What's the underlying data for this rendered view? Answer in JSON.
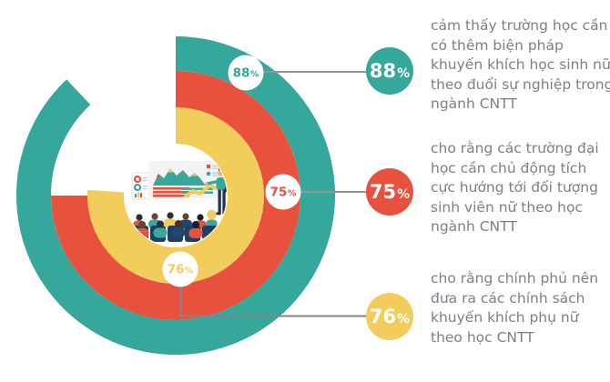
{
  "chart_data": {
    "type": "pie",
    "variant": "concentric_donut_gauge",
    "direction": "clockwise",
    "start_position": "12-oclock",
    "percent_sign": "%",
    "center_illustration": "presentation-scene",
    "rings": [
      {
        "value": 88,
        "value_label": "88%",
        "color": "#35A79B",
        "description": "cảm thấy trường học cần có thêm biện pháp khuyến khích học sinh nữ theo đuổi sự nghiệp trong ngành CNTT"
      },
      {
        "value": 75,
        "value_label": "75%",
        "color": "#E8513D",
        "description": "cho rằng các trường đại học cần chủ động tích cực hướng tới đối tượng sinh viên nữ theo học ngành CNTT"
      },
      {
        "value": 76,
        "value_label": "76%",
        "color": "#F3CD5C",
        "description": "cho rằng chính phủ nên đưa ra các chính sách khuyến khích phụ nữ theo học CNTT"
      }
    ],
    "style": {
      "teal": "#35A79B",
      "red": "#E8513D",
      "yellow": "#F3CD5C",
      "description_text_color": "#7C8187",
      "connector_line_color": "#8F969B",
      "badge_inner_background": "#FFFFFF",
      "audience_navy": "#1F4066"
    }
  }
}
